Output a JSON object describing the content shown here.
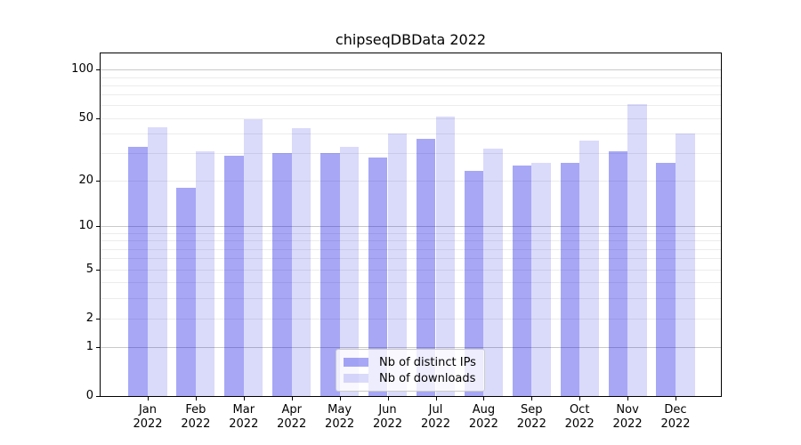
{
  "title": "chipseqDBData 2022",
  "chart_data": {
    "type": "bar",
    "title": "chipseqDBData 2022",
    "categories": [
      "Jan 2022",
      "Feb 2022",
      "Mar 2022",
      "Apr 2022",
      "May 2022",
      "Jun 2022",
      "Jul 2022",
      "Aug 2022",
      "Sep 2022",
      "Oct 2022",
      "Nov 2022",
      "Dec 2022"
    ],
    "x_month_labels": [
      "Jan",
      "Feb",
      "Mar",
      "Apr",
      "May",
      "Jun",
      "Jul",
      "Aug",
      "Sep",
      "Oct",
      "Nov",
      "Dec"
    ],
    "x_year_label": "2022",
    "series": [
      {
        "name": "Nb of distinct IPs",
        "color": "rgba(0,0,230,0.345)",
        "values": [
          33,
          18,
          29,
          30,
          30,
          28,
          37,
          23,
          25,
          26,
          31,
          26
        ]
      },
      {
        "name": "Nb of downloads",
        "color": "rgba(0,0,230,0.145)",
        "values": [
          44,
          31,
          49,
          43,
          33,
          40,
          51,
          32,
          26,
          36,
          61,
          40
        ]
      }
    ],
    "yscale": "log1p",
    "ylim": [
      0,
      126
    ],
    "y_ticks": [
      100,
      50,
      20,
      10,
      5,
      2,
      1,
      0
    ],
    "grid": true,
    "grid_major_lines": [
      100,
      10,
      1
    ],
    "grid_minor_lines": [
      90,
      80,
      70,
      60,
      50,
      40,
      30,
      20,
      9,
      8,
      7,
      6,
      5,
      4,
      3,
      2
    ],
    "legend_position": "lower center"
  },
  "legend": {
    "items": [
      {
        "label": "Nb of distinct IPs"
      },
      {
        "label": "Nb of downloads"
      }
    ]
  },
  "colors": {
    "bar_distinct_ips": "rgba(0,0,230,0.345)",
    "bar_downloads": "rgba(0,0,230,0.145)",
    "major_grid": "#c9c9c9",
    "minor_grid": "#ececec",
    "spine": "#000000",
    "text": "#000000",
    "legend_border": "#cccccc"
  }
}
